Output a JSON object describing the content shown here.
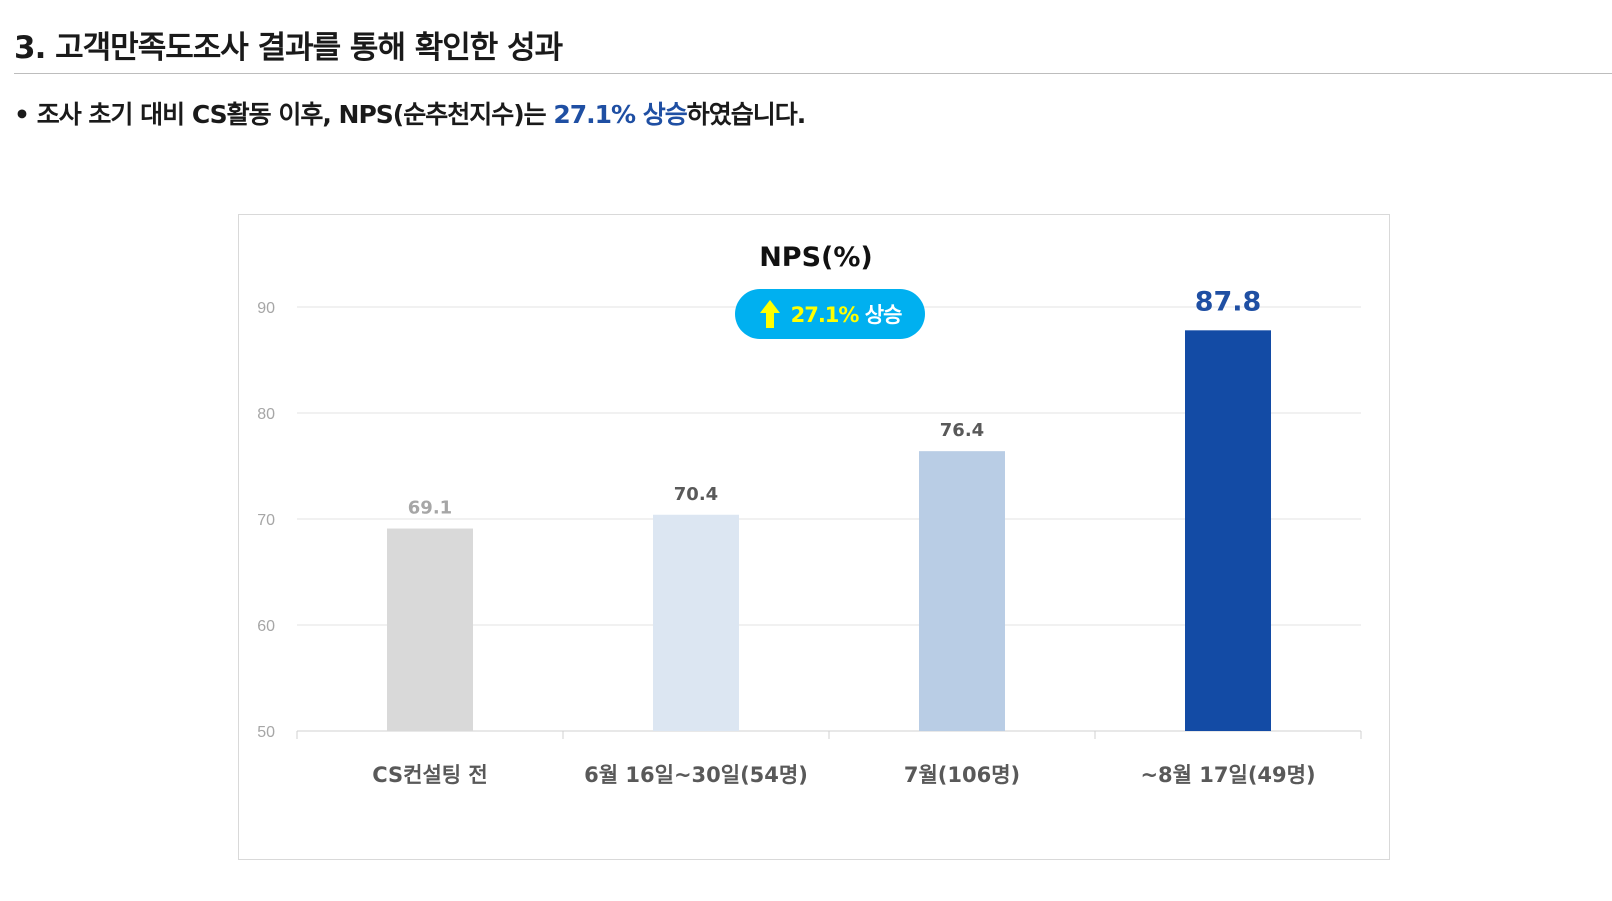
{
  "section_title": "3. 고객만족도조사 결과를 통해 확인한 성과",
  "summary": {
    "bullet": "•",
    "text_before": "조사 초기 대비 CS활동 이후, NPS(순추천지수)는 ",
    "highlight": "27.1% 상승",
    "text_after": "하였습니다."
  },
  "badge": {
    "icon": "up-arrow-icon",
    "percent": "27.1%",
    "word": "상승",
    "background_color": "#00b0f0",
    "arrow_color": "#ffff00"
  },
  "chart_data": {
    "type": "bar",
    "title": "NPS(%)",
    "xlabel": "",
    "ylabel": "",
    "ylim": [
      50,
      90
    ],
    "yticks": [
      50,
      60,
      70,
      80,
      90
    ],
    "grid": true,
    "categories": [
      "CS컨설팅 전",
      "6월 16일~30일(54명)",
      "7월(106명)",
      "~8월 17일(49명)"
    ],
    "values": [
      69.1,
      70.4,
      76.4,
      87.8
    ],
    "value_labels": [
      "69.1",
      "70.4",
      "76.4",
      "87.8"
    ],
    "bar_colors": [
      "#d9d9d9",
      "#dce6f2",
      "#b9cde5",
      "#134ba5"
    ],
    "label_colors": [
      "#a6a6a6",
      "#595959",
      "#595959",
      "#1f4fa3"
    ]
  }
}
